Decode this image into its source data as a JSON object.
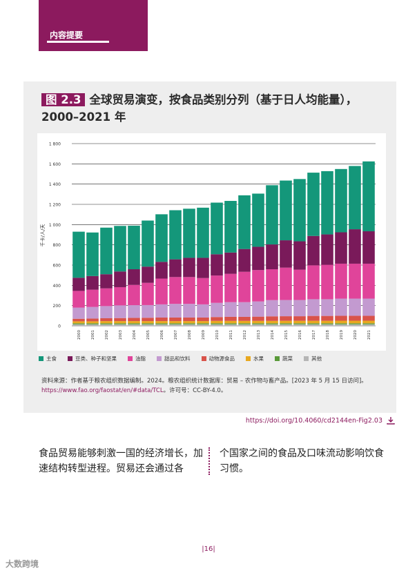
{
  "header": {
    "label": "内容提要"
  },
  "figure": {
    "number": "图 2.3",
    "title": "全球贸易演变，按食品类别分列（基于日人均能量），2000–2021 年",
    "source_line1": "资料来源：作者基于粮农组织数据编制。2024。粮农组织统计数据库：贸易 – 农作物与畜产品。[2023 年 5 月 15 日访问]。",
    "source_link": "https://www.fao.org/faostat/en/#data/TCL",
    "source_line2": "。许可号：CC-BY-4.0。",
    "doi": "https://doi.org/10.4060/cd2144en-Fig2.03"
  },
  "body": {
    "col1": "食品贸易能够刺激一国的经济增长，加速结构转型进程。贸易还会通过各",
    "col2": "个国家之间的食品及口味流动影响饮食习惯。"
  },
  "page_number": "|16|",
  "watermark": "大数跨境",
  "colors": {
    "brand": "#8c1a5e"
  },
  "chart_data": {
    "type": "bar",
    "stacked": true,
    "title": "全球贸易演变，按食品类别分列（基于日人均能量），2000–2021 年",
    "ylabel": "千卡/人/天",
    "xlabel": "",
    "ylim": [
      0,
      1800
    ],
    "yticks": [
      "0",
      "200",
      "400",
      "600",
      "800",
      "1 000",
      "1 200",
      "1 400",
      "1 600",
      "1 800"
    ],
    "ytick_values": [
      0,
      200,
      400,
      600,
      800,
      1000,
      1200,
      1400,
      1600,
      1800
    ],
    "categories": [
      "2000",
      "2001",
      "2002",
      "2003",
      "2004",
      "2005",
      "2006",
      "2007",
      "2008",
      "2009",
      "2010",
      "2011",
      "2012",
      "2013",
      "2014",
      "2015",
      "2016",
      "2017",
      "2018",
      "2019",
      "2020",
      "2021"
    ],
    "series": [
      {
        "name": "其他",
        "color": "#b5b5b5",
        "values": [
          15,
          15,
          15,
          15,
          15,
          15,
          15,
          15,
          15,
          15,
          15,
          15,
          15,
          15,
          15,
          15,
          15,
          15,
          15,
          15,
          15,
          15
        ]
      },
      {
        "name": "蔬菜",
        "color": "#5a9a3a",
        "values": [
          10,
          10,
          10,
          10,
          10,
          10,
          10,
          10,
          10,
          10,
          10,
          10,
          10,
          10,
          10,
          10,
          10,
          10,
          10,
          10,
          10,
          10
        ]
      },
      {
        "name": "水果",
        "color": "#e8a820",
        "values": [
          20,
          20,
          22,
          22,
          22,
          22,
          22,
          22,
          22,
          22,
          24,
          24,
          24,
          24,
          24,
          25,
          25,
          25,
          25,
          26,
          26,
          26
        ]
      },
      {
        "name": "动物源食品",
        "color": "#d9534a",
        "values": [
          25,
          27,
          28,
          30,
          32,
          33,
          35,
          35,
          35,
          35,
          38,
          40,
          40,
          42,
          45,
          45,
          45,
          48,
          48,
          48,
          48,
          48
        ]
      },
      {
        "name": "甜品和饮料",
        "color": "#c39ad0",
        "values": [
          110,
          115,
          120,
          125,
          125,
          125,
          130,
          135,
          135,
          130,
          140,
          145,
          145,
          150,
          160,
          160,
          160,
          165,
          165,
          170,
          170,
          170
        ]
      },
      {
        "name": "油脂",
        "color": "#e0449a",
        "values": [
          165,
          170,
          175,
          180,
          200,
          220,
          255,
          265,
          265,
          260,
          270,
          280,
          300,
          310,
          305,
          320,
          300,
          335,
          340,
          345,
          345,
          345
        ]
      },
      {
        "name": "豆类、种子和坚果",
        "color": "#7a1a5a",
        "values": [
          130,
          135,
          140,
          155,
          155,
          160,
          165,
          175,
          190,
          200,
          210,
          210,
          225,
          230,
          245,
          270,
          280,
          290,
          300,
          310,
          340,
          320
        ]
      },
      {
        "name": "主食",
        "color": "#14977a",
        "values": [
          455,
          430,
          460,
          450,
          430,
          455,
          470,
          485,
          485,
          495,
          510,
          510,
          530,
          525,
          585,
          590,
          615,
          625,
          625,
          625,
          625,
          690
        ]
      }
    ],
    "legend_order": [
      "主食",
      "豆类、种子和坚果",
      "油脂",
      "甜品和饮料",
      "动物源食品",
      "水果",
      "蔬菜",
      "其他"
    ]
  }
}
